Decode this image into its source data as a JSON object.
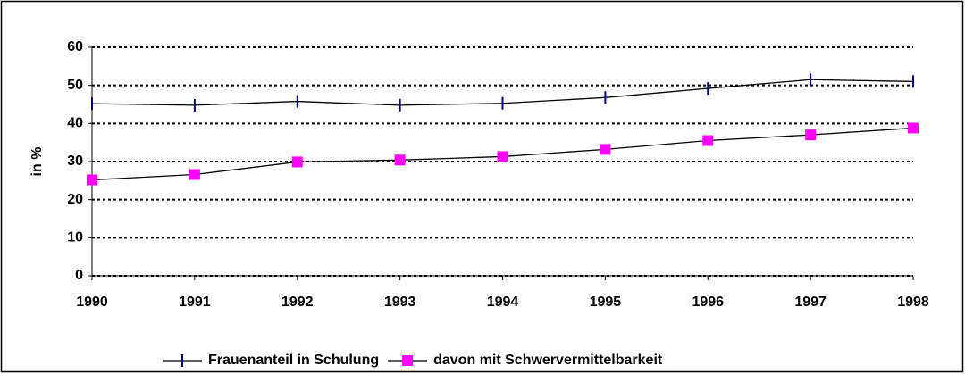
{
  "chart_data": {
    "type": "line",
    "y_label": "in %",
    "x": [
      1990,
      1991,
      1992,
      1993,
      1994,
      1995,
      1996,
      1997,
      1998
    ],
    "xlim": [
      1990,
      1998
    ],
    "xticks": [
      1990,
      1991,
      1992,
      1993,
      1994,
      1995,
      1996,
      1997,
      1998
    ],
    "ylim": [
      0,
      60
    ],
    "yticks": [
      0,
      10,
      20,
      30,
      40,
      50,
      60
    ],
    "grid": true,
    "legend": "bottom",
    "series": [
      {
        "name": "Frauenanteil in Schulung",
        "color": "#000080",
        "marker": "tick",
        "values": [
          45.2,
          44.8,
          45.8,
          44.8,
          45.3,
          46.8,
          49.2,
          51.5,
          51.0
        ]
      },
      {
        "name": "davon mit Schwervermittelbarkeit",
        "color": "#ff00ff",
        "marker": "square",
        "values": [
          25.2,
          26.6,
          29.9,
          30.4,
          31.3,
          33.2,
          35.5,
          37.0,
          38.8
        ]
      }
    ]
  }
}
